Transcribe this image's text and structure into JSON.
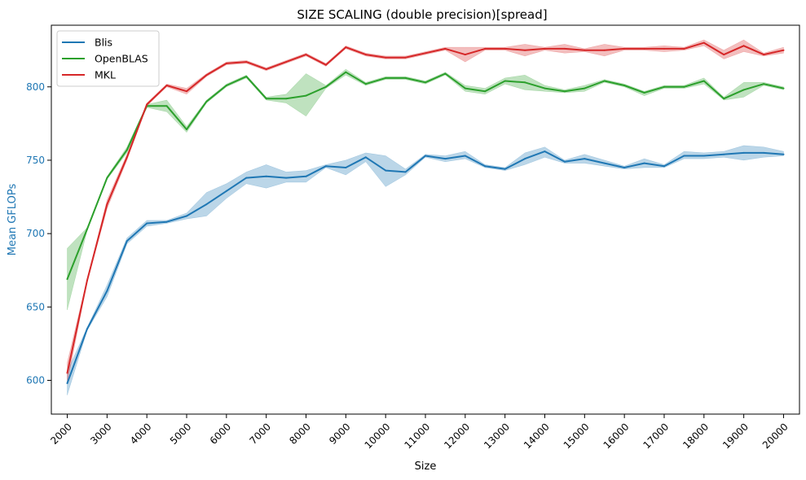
{
  "chart_data": {
    "type": "line",
    "title": "SIZE SCALING (double precision)[spread]",
    "xlabel": "Size",
    "ylabel": "Mean GFLOPs",
    "ylabel_color": "#1f77b4",
    "ytick_color": "#1f77b4",
    "xlim": [
      1600,
      20400
    ],
    "ylim": [
      577,
      842
    ],
    "xticks": [
      2000,
      3000,
      4000,
      5000,
      6000,
      7000,
      8000,
      9000,
      10000,
      11000,
      12000,
      13000,
      14000,
      15000,
      16000,
      17000,
      18000,
      19000,
      20000
    ],
    "xtick_labels": [
      "2000",
      "3000",
      "4000",
      "5000",
      "6000",
      "7000",
      "8000",
      "9000",
      "10000",
      "11000",
      "12000",
      "13000",
      "14000",
      "15000",
      "16000",
      "17000",
      "18000",
      "19000",
      "20000"
    ],
    "yticks": [
      600,
      650,
      700,
      750,
      800
    ],
    "ytick_labels": [
      "600",
      "650",
      "700",
      "750",
      "800"
    ],
    "grid": false,
    "legend_position": "top-left",
    "x": [
      2000,
      2500,
      3000,
      3500,
      4000,
      4500,
      5000,
      5500,
      6000,
      6500,
      7000,
      7500,
      8000,
      8500,
      9000,
      9500,
      10000,
      10500,
      11000,
      11500,
      12000,
      12500,
      13000,
      13500,
      14000,
      14500,
      15000,
      15500,
      16000,
      16500,
      17000,
      17500,
      18000,
      18500,
      19000,
      19500,
      20000
    ],
    "series": [
      {
        "name": "Blis",
        "color": "#1f77b4",
        "values": [
          598,
          635,
          661,
          695,
          707,
          708,
          712,
          720,
          729,
          738,
          739,
          738,
          739,
          746,
          745,
          752,
          743,
          742,
          753,
          751,
          753,
          746,
          744,
          751,
          756,
          749,
          751,
          748,
          745,
          748,
          746,
          753,
          753,
          754,
          755,
          755,
          754
        ],
        "lower": [
          590,
          634,
          657,
          693,
          705,
          707,
          710,
          712,
          724,
          734,
          731,
          735,
          735,
          745,
          740,
          749,
          732,
          740,
          752,
          749,
          751,
          745,
          743,
          747,
          752,
          748,
          748,
          746,
          744,
          745,
          745,
          751,
          751,
          752,
          750,
          752,
          753
        ],
        "upper": [
          606,
          636,
          665,
          697,
          709,
          709,
          714,
          728,
          734,
          742,
          747,
          742,
          743,
          747,
          750,
          755,
          753,
          744,
          754,
          753,
          756,
          747,
          745,
          755,
          759,
          750,
          754,
          750,
          746,
          751,
          747,
          756,
          755,
          756,
          760,
          759,
          756
        ]
      },
      {
        "name": "OpenBLAS",
        "color": "#2ca02c",
        "values": [
          669,
          703,
          738,
          757,
          787,
          787,
          771,
          790,
          801,
          807,
          792,
          792,
          794,
          800,
          810,
          802,
          806,
          806,
          803,
          809,
          799,
          797,
          804,
          803,
          799,
          797,
          799,
          804,
          801,
          796,
          800,
          800,
          804,
          792,
          798,
          802,
          799
        ],
        "lower": [
          648,
          702,
          737,
          755,
          786,
          783,
          769,
          789,
          800,
          806,
          791,
          789,
          780,
          799,
          808,
          801,
          805,
          805,
          802,
          808,
          797,
          795,
          802,
          798,
          797,
          796,
          797,
          803,
          800,
          794,
          799,
          799,
          802,
          791,
          793,
          801,
          798
        ],
        "upper": [
          690,
          704,
          739,
          759,
          788,
          791,
          773,
          791,
          802,
          808,
          793,
          795,
          809,
          801,
          812,
          803,
          807,
          807,
          804,
          810,
          801,
          799,
          806,
          808,
          801,
          798,
          801,
          805,
          802,
          797,
          801,
          801,
          806,
          793,
          803,
          803,
          800
        ]
      },
      {
        "name": "MKL",
        "color": "#d62728",
        "values": [
          605,
          668,
          720,
          752,
          788,
          801,
          797,
          808,
          816,
          817,
          812,
          817,
          822,
          815,
          827,
          822,
          820,
          820,
          823,
          826,
          822,
          826,
          826,
          825,
          826,
          826,
          825,
          825,
          826,
          826,
          826,
          826,
          830,
          822,
          828,
          822,
          825
        ],
        "lower": [
          598,
          667,
          717,
          750,
          787,
          800,
          795,
          807,
          815,
          816,
          811,
          816,
          821,
          814,
          826,
          821,
          819,
          819,
          822,
          825,
          817,
          825,
          825,
          821,
          825,
          823,
          824,
          821,
          825,
          825,
          824,
          825,
          828,
          819,
          824,
          821,
          823
        ],
        "upper": [
          612,
          669,
          723,
          754,
          789,
          802,
          799,
          809,
          817,
          818,
          813,
          818,
          823,
          816,
          828,
          823,
          821,
          821,
          824,
          827,
          827,
          827,
          827,
          829,
          827,
          829,
          826,
          829,
          827,
          827,
          828,
          827,
          832,
          825,
          832,
          823,
          827
        ]
      }
    ]
  }
}
